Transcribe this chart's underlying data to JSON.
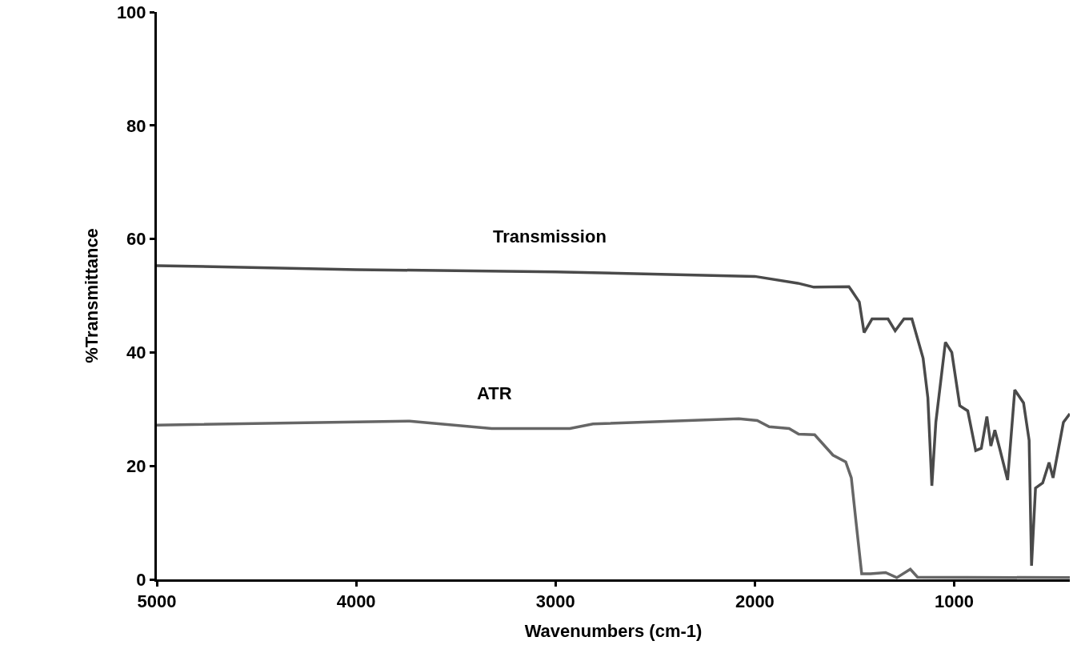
{
  "chart_data": {
    "type": "line",
    "xlabel": "Wavenumbers (cm-1)",
    "ylabel": "%Transmittance",
    "xlim": [
      5000,
      420
    ],
    "xticks": [
      5000,
      4000,
      3000,
      2000,
      1000
    ],
    "ylim": [
      0,
      100
    ],
    "yticks": [
      0,
      20,
      40,
      60,
      80,
      100
    ],
    "legend": false,
    "marker": "none",
    "line_style": "solid",
    "series": [
      {
        "name": "Transmission",
        "color": "#4a4a4a",
        "x": [
          5000,
          4000,
          3000,
          2000,
          1784,
          1704,
          1528,
          1516,
          1476,
          1452,
          1412,
          1332,
          1296,
          1252,
          1212,
          1156,
          1132,
          1112,
          1092,
          1044,
          1012,
          972,
          932,
          892,
          864,
          836,
          816,
          796,
          772,
          732,
          696,
          652,
          624,
          612,
          592,
          556,
          524,
          504,
          452,
          420
        ],
        "values": [
          55.3,
          54.6,
          54.2,
          53.4,
          52.2,
          51.5,
          51.6,
          51.0,
          48.9,
          43.5,
          45.9,
          45.9,
          43.8,
          45.9,
          45.9,
          39.0,
          32.0,
          16.5,
          27.7,
          41.8,
          40.0,
          30.6,
          29.7,
          22.7,
          23.1,
          28.7,
          23.5,
          26.3,
          23.1,
          17.5,
          33.4,
          31.1,
          24.5,
          2.4,
          16.1,
          17.0,
          20.6,
          17.9,
          27.7,
          29.2
        ]
      },
      {
        "name": "ATR",
        "color": "#666666",
        "x": [
          5000,
          3732,
          3320,
          2928,
          2812,
          2080,
          1988,
          1928,
          1828,
          1780,
          1700,
          1608,
          1544,
          1516,
          1492,
          1464,
          1420,
          1344,
          1288,
          1220,
          1184,
          420
        ],
        "values": [
          27.2,
          27.9,
          26.6,
          26.6,
          27.4,
          28.3,
          28.0,
          26.9,
          26.6,
          25.6,
          25.5,
          21.9,
          20.7,
          17.9,
          10.0,
          1.0,
          1.0,
          1.2,
          0.3,
          1.8,
          0.4,
          0.3
        ]
      }
    ]
  }
}
